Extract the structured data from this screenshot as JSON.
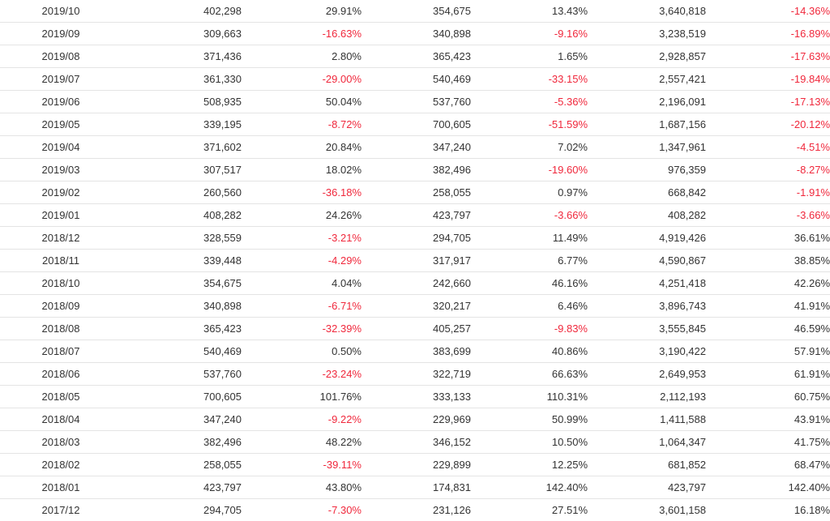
{
  "colors": {
    "text": "#333333",
    "negative": "#f0283c",
    "divider": "#e4e4e4"
  },
  "table": {
    "rows": [
      [
        "2019/10",
        "402,298",
        "29.91%",
        "354,675",
        "13.43%",
        "3,640,818",
        "-14.36%"
      ],
      [
        "2019/09",
        "309,663",
        "-16.63%",
        "340,898",
        "-9.16%",
        "3,238,519",
        "-16.89%"
      ],
      [
        "2019/08",
        "371,436",
        "2.80%",
        "365,423",
        "1.65%",
        "2,928,857",
        "-17.63%"
      ],
      [
        "2019/07",
        "361,330",
        "-29.00%",
        "540,469",
        "-33.15%",
        "2,557,421",
        "-19.84%"
      ],
      [
        "2019/06",
        "508,935",
        "50.04%",
        "537,760",
        "-5.36%",
        "2,196,091",
        "-17.13%"
      ],
      [
        "2019/05",
        "339,195",
        "-8.72%",
        "700,605",
        "-51.59%",
        "1,687,156",
        "-20.12%"
      ],
      [
        "2019/04",
        "371,602",
        "20.84%",
        "347,240",
        "7.02%",
        "1,347,961",
        "-4.51%"
      ],
      [
        "2019/03",
        "307,517",
        "18.02%",
        "382,496",
        "-19.60%",
        "976,359",
        "-8.27%"
      ],
      [
        "2019/02",
        "260,560",
        "-36.18%",
        "258,055",
        "0.97%",
        "668,842",
        "-1.91%"
      ],
      [
        "2019/01",
        "408,282",
        "24.26%",
        "423,797",
        "-3.66%",
        "408,282",
        "-3.66%"
      ],
      [
        "2018/12",
        "328,559",
        "-3.21%",
        "294,705",
        "11.49%",
        "4,919,426",
        "36.61%"
      ],
      [
        "2018/11",
        "339,448",
        "-4.29%",
        "317,917",
        "6.77%",
        "4,590,867",
        "38.85%"
      ],
      [
        "2018/10",
        "354,675",
        "4.04%",
        "242,660",
        "46.16%",
        "4,251,418",
        "42.26%"
      ],
      [
        "2018/09",
        "340,898",
        "-6.71%",
        "320,217",
        "6.46%",
        "3,896,743",
        "41.91%"
      ],
      [
        "2018/08",
        "365,423",
        "-32.39%",
        "405,257",
        "-9.83%",
        "3,555,845",
        "46.59%"
      ],
      [
        "2018/07",
        "540,469",
        "0.50%",
        "383,699",
        "40.86%",
        "3,190,422",
        "57.91%"
      ],
      [
        "2018/06",
        "537,760",
        "-23.24%",
        "322,719",
        "66.63%",
        "2,649,953",
        "61.91%"
      ],
      [
        "2018/05",
        "700,605",
        "101.76%",
        "333,133",
        "110.31%",
        "2,112,193",
        "60.75%"
      ],
      [
        "2018/04",
        "347,240",
        "-9.22%",
        "229,969",
        "50.99%",
        "1,411,588",
        "43.91%"
      ],
      [
        "2018/03",
        "382,496",
        "48.22%",
        "346,152",
        "10.50%",
        "1,064,347",
        "41.75%"
      ],
      [
        "2018/02",
        "258,055",
        "-39.11%",
        "229,899",
        "12.25%",
        "681,852",
        "68.47%"
      ],
      [
        "2018/01",
        "423,797",
        "43.80%",
        "174,831",
        "142.40%",
        "423,797",
        "142.40%"
      ],
      [
        "2017/12",
        "294,705",
        "-7.30%",
        "231,126",
        "27.51%",
        "3,601,158",
        "16.18%"
      ]
    ]
  }
}
